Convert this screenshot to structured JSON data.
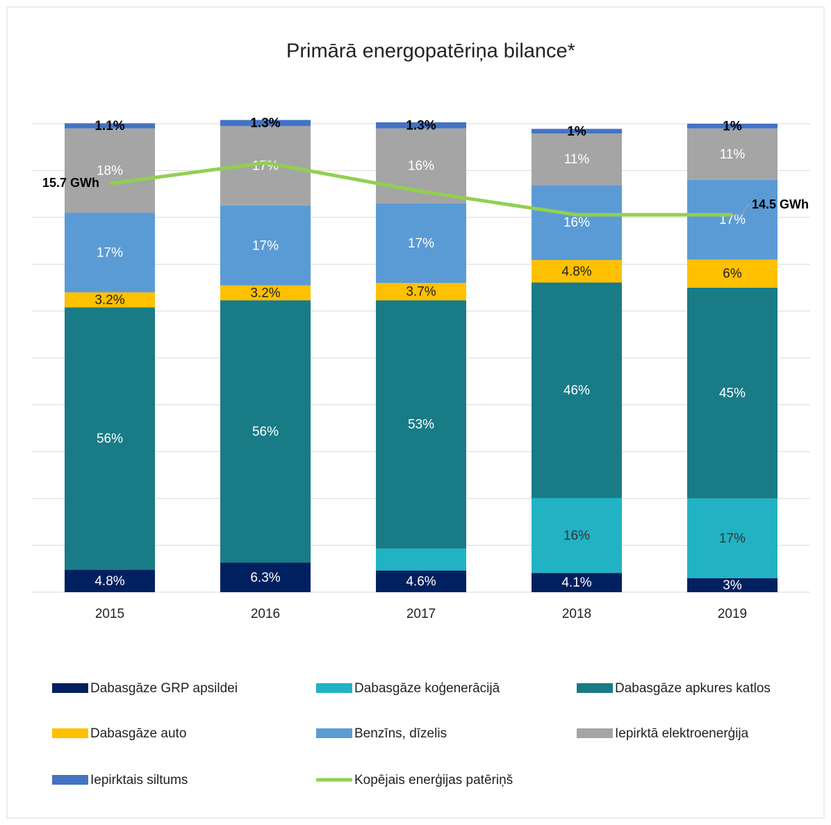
{
  "chart_data": {
    "type": "stacked_bar_line",
    "title": "Primārā energopatēriņa bilance*",
    "categories": [
      "2015",
      "2016",
      "2017",
      "2018",
      "2019"
    ],
    "ylim": [
      0,
      100
    ],
    "yticks": [
      0,
      10,
      20,
      30,
      40,
      50,
      60,
      70,
      80,
      90,
      100
    ],
    "show_ytick_labels": false,
    "grid": true,
    "y2lim": [
      0,
      18
    ],
    "legend": "bottom",
    "series": [
      {
        "name": "Dabasgāze GRP apsildei",
        "color": "#002060",
        "label_color": "#ffffff",
        "values": [
          4.8,
          6.3,
          4.6,
          4.1,
          3
        ],
        "value_labels": [
          "4.8%",
          "6.3%",
          "4.6%",
          "4.1%",
          "3%"
        ]
      },
      {
        "name": "Dabasgāze koģenerācijā",
        "color": "#21b3c4",
        "label_color": "#333333",
        "values": [
          0,
          0,
          4.7,
          16,
          17
        ],
        "value_labels": [
          null,
          null,
          null,
          "16%",
          "17%"
        ]
      },
      {
        "name": "Dabasgāze apkures katlos",
        "color": "#197b86",
        "label_color": "#ffffff",
        "values": [
          56,
          56,
          53,
          46,
          45
        ],
        "value_labels": [
          "56%",
          "56%",
          "53%",
          "46%",
          "45%"
        ]
      },
      {
        "name": "Dabasgāze auto",
        "color": "#ffc000",
        "label_color": "#222222",
        "values": [
          3.2,
          3.2,
          3.7,
          4.8,
          6
        ],
        "value_labels": [
          "3.2%",
          "3.2%",
          "3.7%",
          "4.8%",
          "6%"
        ]
      },
      {
        "name": "Benzīns, dīzelis",
        "color": "#5b9bd5",
        "label_color": "#ffffff",
        "values": [
          17,
          17,
          17,
          16,
          17
        ],
        "value_labels": [
          "17%",
          "17%",
          "17%",
          "16%",
          "17%"
        ]
      },
      {
        "name": "Iepirktā elektroenerģija",
        "color": "#a5a5a5",
        "label_color": "#ffffff",
        "values": [
          18,
          17,
          16,
          11,
          11
        ],
        "value_labels": [
          "18%",
          "17%",
          "16%",
          "11%",
          "11%"
        ]
      },
      {
        "name": "Iepirktais siltums",
        "color": "#4472c4",
        "label_color": "#000000",
        "label_bold": true,
        "values": [
          1.1,
          1.3,
          1.3,
          1,
          1
        ],
        "value_labels": [
          "1.1%",
          "1.3%",
          "1.3%",
          "1%",
          "1%"
        ]
      },
      {
        "name": "Kopējais enerģijas patēriņš",
        "type": "line",
        "axis": "y2",
        "color": "#92d050",
        "values": [
          15.7,
          16.5,
          15.4,
          14.5,
          14.5
        ],
        "value_labels": [
          "15.7 GWh",
          null,
          null,
          null,
          "14.5 GWh"
        ]
      }
    ]
  }
}
